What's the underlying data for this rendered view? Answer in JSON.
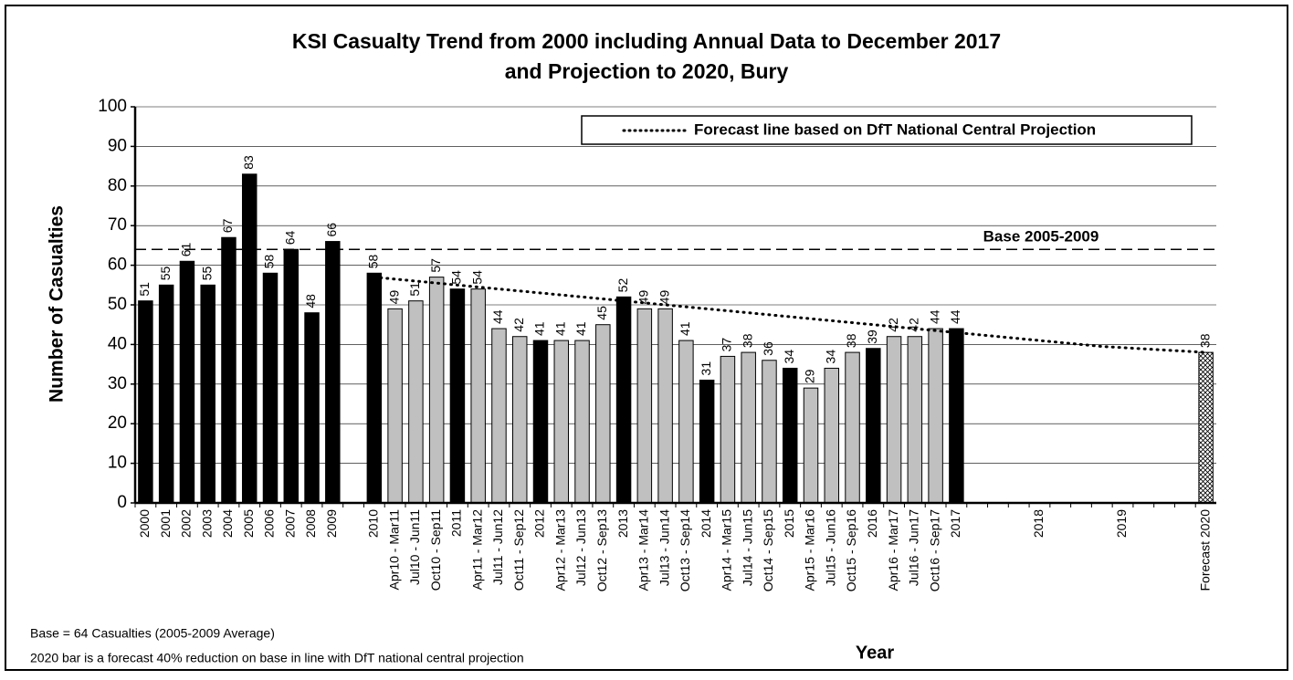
{
  "chart_data": {
    "type": "bar",
    "title": "KSI Casualty Trend from 2000 including Annual Data to December 2017",
    "subtitle": "and Projection to 2020, Bury",
    "y_label": "Number of Casualties",
    "x_label": "Year",
    "notes": [
      "Base = 64 Casualties (2005-2009 Average)",
      "2020 bar is a forecast 40% reduction on base in line with DfT national central projection"
    ],
    "categories": [
      "2000",
      "2001",
      "2002",
      "2003",
      "2004",
      "2005",
      "2006",
      "2007",
      "2008",
      "2009",
      null,
      "2010",
      "Apr10 - Mar11",
      "Jul10 - Jun11",
      "Oct10 - Sep11",
      "2011",
      "Apr11 - Mar12",
      "Jul11 - Jun12",
      "Oct11 - Sep12",
      "2012",
      "Apr12 - Mar13",
      "Jul12 - Jun13",
      "Oct12 - Sep13",
      "2013",
      "Apr13 - Mar14",
      "Jul13 - Jun14",
      "Oct13 - Sep14",
      "2014",
      "Apr14 - Mar15",
      "Jul14 - Jun15",
      "Oct14 - Sep15",
      "2015",
      "Apr15 - Mar16",
      "Jul15 - Jun16",
      "Oct15 - Sep16",
      "2016",
      "Apr16 - Mar17",
      "Jul16 - Jun17",
      "Oct16 - Sep17",
      "2017",
      null,
      null,
      null,
      "2018",
      null,
      null,
      null,
      "2019",
      null,
      null,
      null,
      "Forecast 2020"
    ],
    "values": [
      51,
      55,
      61,
      55,
      67,
      83,
      58,
      64,
      48,
      66,
      null,
      58,
      49,
      51,
      57,
      54,
      54,
      44,
      42,
      41,
      41,
      41,
      45,
      52,
      49,
      49,
      41,
      31,
      37,
      38,
      36,
      34,
      29,
      34,
      38,
      39,
      42,
      42,
      44,
      44,
      null,
      null,
      null,
      null,
      null,
      null,
      null,
      null,
      null,
      null,
      null,
      38
    ],
    "colors": [
      "#000000",
      "#000000",
      "#000000",
      "#000000",
      "#000000",
      "#000000",
      "#000000",
      "#000000",
      "#000000",
      "#000000",
      null,
      "#000000",
      "#c0c0c0",
      "#c0c0c0",
      "#c0c0c0",
      "#000000",
      "#c0c0c0",
      "#c0c0c0",
      "#c0c0c0",
      "#000000",
      "#c0c0c0",
      "#c0c0c0",
      "#c0c0c0",
      "#000000",
      "#c0c0c0",
      "#c0c0c0",
      "#c0c0c0",
      "#000000",
      "#c0c0c0",
      "#c0c0c0",
      "#c0c0c0",
      "#000000",
      "#c0c0c0",
      "#c0c0c0",
      "#c0c0c0",
      "#000000",
      "#c0c0c0",
      "#c0c0c0",
      "#c0c0c0",
      "#000000",
      null,
      null,
      null,
      null,
      null,
      null,
      null,
      null,
      null,
      null,
      null,
      "crosshatch"
    ],
    "forecast_line": {
      "name": "Forecast line based on DfT National Central Projection",
      "color": "#000000",
      "values": [
        null,
        null,
        null,
        null,
        null,
        null,
        null,
        null,
        null,
        null,
        null,
        57,
        56.5,
        56,
        55.5,
        55,
        54.5,
        54,
        53.5,
        53,
        52.5,
        52,
        51.5,
        51,
        50.5,
        50,
        49.5,
        49,
        48.5,
        48,
        47.5,
        47,
        46.5,
        46,
        45.5,
        45,
        44.5,
        44,
        43.5,
        43,
        42.5,
        42,
        41.5,
        41,
        40.5,
        40,
        39.5,
        39.2,
        38.9,
        38.6,
        38.3,
        38
      ]
    },
    "base_line": {
      "label": "Base 2005-2009",
      "value": 64
    },
    "ylim": [
      0,
      100
    ],
    "yticks": [
      0,
      10,
      20,
      30,
      40,
      50,
      60,
      70,
      80,
      90,
      100
    ],
    "grid": true
  }
}
